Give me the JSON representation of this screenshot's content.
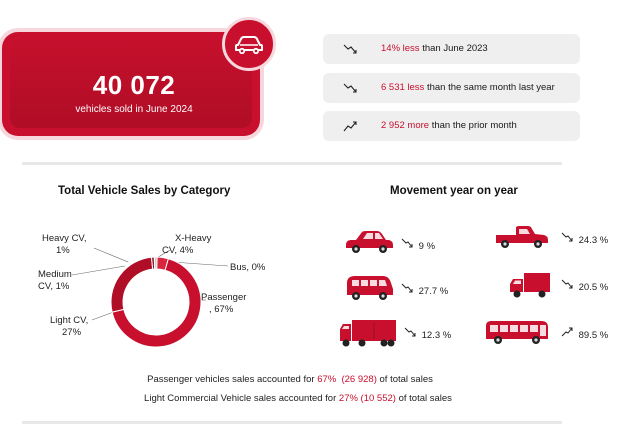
{
  "hero": {
    "number": "40 072",
    "subtitle": "vehicles sold in June 2024",
    "icon": "car-icon"
  },
  "stats": [
    {
      "direction": "down",
      "highlight": "14% less",
      "rest": "than June 2023"
    },
    {
      "direction": "down",
      "highlight": "6 531 less",
      "rest": "than the same month last year"
    },
    {
      "direction": "up",
      "highlight": "2 952 more",
      "rest": "than the prior month"
    }
  ],
  "category_chart": {
    "title": "Total Vehicle Sales by Category",
    "labels": {
      "heavy": [
        "Heavy CV,",
        "1%"
      ],
      "xheavy": [
        "X-Heavy",
        "CV, 4%"
      ],
      "bus": [
        "Bus, 0%"
      ],
      "medium": [
        "Medium",
        "CV, 1%"
      ],
      "light": [
        "Light CV,",
        "27%"
      ],
      "passenger": [
        "Passenger",
        ", 67%"
      ]
    }
  },
  "chart_data": {
    "type": "pie",
    "donut": true,
    "categories": [
      "Passenger",
      "Light CV",
      "Medium CV",
      "Heavy CV",
      "X-Heavy CV",
      "Bus"
    ],
    "values": [
      67,
      27,
      1,
      1,
      4,
      0
    ],
    "title": "Total Vehicle Sales by Category"
  },
  "movement": {
    "title": "Movement year on year",
    "items": [
      {
        "vehicle": "car",
        "direction": "down",
        "value": "9 %"
      },
      {
        "vehicle": "pickup",
        "direction": "down",
        "value": "24.3 %"
      },
      {
        "vehicle": "minibus",
        "direction": "down",
        "value": "27.7 %"
      },
      {
        "vehicle": "truck",
        "direction": "down",
        "value": "20.5 %"
      },
      {
        "vehicle": "heavy-truck",
        "direction": "down",
        "value": "12.3 %"
      },
      {
        "vehicle": "bus",
        "direction": "up",
        "value": "89.5 %"
      }
    ]
  },
  "notes": [
    {
      "pre": "Passenger vehicles sales accounted for ",
      "pct": "67%",
      "mid": "  (26 928)",
      "post": " of total sales"
    },
    {
      "pre": "Light Commercial Vehicle sales accounted for ",
      "pct": "27%",
      "mid": " (10 552)",
      "post": " of total sales"
    }
  ],
  "colors": {
    "accent": "#c8102e",
    "accent_light": "#f6d7dd",
    "pill_bg": "#efeff0"
  }
}
